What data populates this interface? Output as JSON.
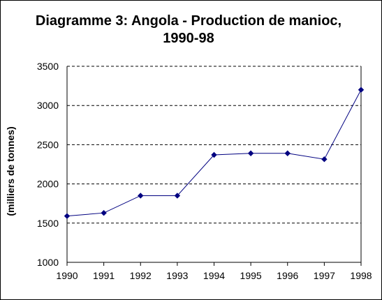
{
  "chart_data": {
    "type": "line",
    "title": "Diagramme 3: Angola - Production de manioc, 1990-98",
    "xlabel": "",
    "ylabel": "(milliers de tonnes)",
    "ylim": [
      1000,
      3500
    ],
    "yticks": [
      "1000",
      "1500",
      "2000",
      "2500",
      "3000",
      "3500"
    ],
    "grid": "horizontal dashed",
    "legend": "none",
    "categories": [
      "1990",
      "1991",
      "1992",
      "1993",
      "1994",
      "1995",
      "1996",
      "1997",
      "1998"
    ],
    "series": [
      {
        "values": [
          1590,
          1630,
          1850,
          1850,
          2370,
          2390,
          2390,
          2315,
          3200
        ],
        "color": "#000080"
      }
    ]
  }
}
